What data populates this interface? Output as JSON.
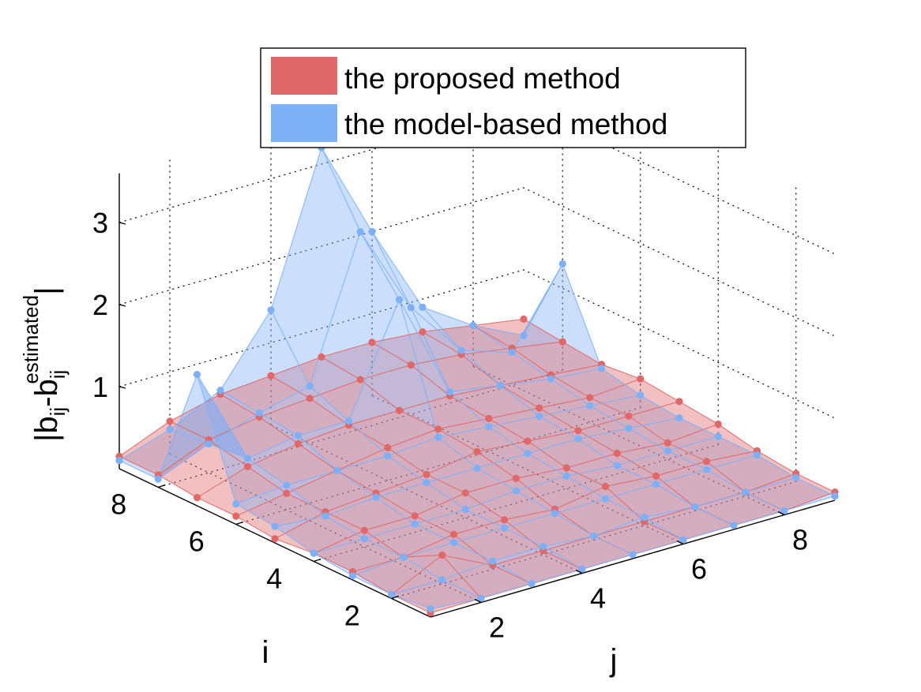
{
  "chart_data": {
    "type": "surface3d",
    "xlabel": "i",
    "ylabel": "j",
    "zlabel": "|b_ij - b_ij^estimated|",
    "zlabel_parts": {
      "open": "|b",
      "sub1": "ij",
      "dash": "-b",
      "sub2": "ij",
      "sup": "estimated",
      "close": "|"
    },
    "i_ticks": [
      "2",
      "4",
      "6",
      "8"
    ],
    "j_ticks": [
      "2",
      "4",
      "6",
      "8"
    ],
    "z_ticks": [
      "1",
      "2",
      "3"
    ],
    "i_range": [
      1,
      9
    ],
    "j_range": [
      1,
      9
    ],
    "zlim": [
      0,
      3.6
    ],
    "grid": true,
    "legend_position": "top",
    "i": [
      1,
      2,
      3,
      4,
      5,
      6,
      7,
      8,
      9
    ],
    "j": [
      1,
      2,
      3,
      4,
      5,
      6,
      7,
      8,
      9
    ],
    "series": [
      {
        "name": "the proposed method",
        "color": "#e06868",
        "z": [
          [
            0.05,
            0.05,
            0.05,
            0.05,
            0.05,
            0.05,
            0.05,
            0.05,
            0.1
          ],
          [
            0.05,
            0.35,
            0.05,
            0.05,
            0.05,
            0.05,
            0.05,
            0.05,
            0.1
          ],
          [
            0.1,
            0.1,
            0.2,
            0.2,
            0.15,
            0.25,
            0.2,
            0.2,
            0.15
          ],
          [
            0.1,
            0.2,
            0.2,
            0.3,
            0.3,
            0.25,
            0.25,
            0.2,
            0.25
          ],
          [
            0.05,
            0.2,
            0.25,
            0.3,
            0.4,
            0.35,
            0.3,
            0.3,
            0.3
          ],
          [
            0.1,
            0.2,
            0.3,
            0.4,
            0.45,
            0.4,
            0.35,
            0.3,
            0.35
          ],
          [
            0.1,
            0.3,
            0.4,
            0.45,
            0.45,
            0.45,
            0.4,
            0.35,
            0.3
          ],
          [
            0.15,
            0.4,
            0.5,
            0.55,
            0.6,
            0.6,
            0.55,
            0.45,
            0.35
          ],
          [
            0.15,
            0.4,
            0.55,
            0.6,
            0.65,
            0.65,
            0.6,
            0.5,
            0.4
          ]
        ]
      },
      {
        "name": "the model-based method",
        "color": "#7eb0f8",
        "z": [
          [
            0.1,
            0.05,
            0.05,
            0.05,
            0.05,
            0.05,
            0.05,
            0.05,
            0.05
          ],
          [
            0.05,
            0.05,
            0.1,
            0.1,
            0.05,
            0.1,
            0.05,
            0.05,
            0.05
          ],
          [
            0.05,
            0.1,
            0.1,
            0.1,
            0.1,
            0.1,
            0.1,
            0.1,
            0.1
          ],
          [
            0.1,
            0.1,
            0.1,
            0.1,
            0.15,
            0.15,
            0.1,
            0.1,
            0.1
          ],
          [
            0.2,
            0.15,
            0.2,
            0.2,
            0.2,
            0.2,
            0.2,
            0.15,
            0.1
          ],
          [
            0.25,
            0.3,
            0.3,
            0.3,
            0.35,
            0.3,
            0.25,
            0.2,
            0.15
          ],
          [
            1.6,
            0.4,
            0.5,
            0.5,
            1.8,
            0.5,
            0.4,
            0.3,
            0.25
          ],
          [
            0.1,
            0.35,
            0.55,
            0.7,
            2.4,
            1.3,
            0.6,
            0.4,
            1.3
          ],
          [
            0.1,
            0.3,
            0.6,
            1.4,
            3.2,
            2.0,
            0.9,
            0.5,
            0.2
          ]
        ]
      }
    ]
  },
  "legend": {
    "items": [
      {
        "label": "the proposed method",
        "color": "#e06868"
      },
      {
        "label": "the model-based method",
        "color": "#7eb0f8"
      }
    ]
  }
}
